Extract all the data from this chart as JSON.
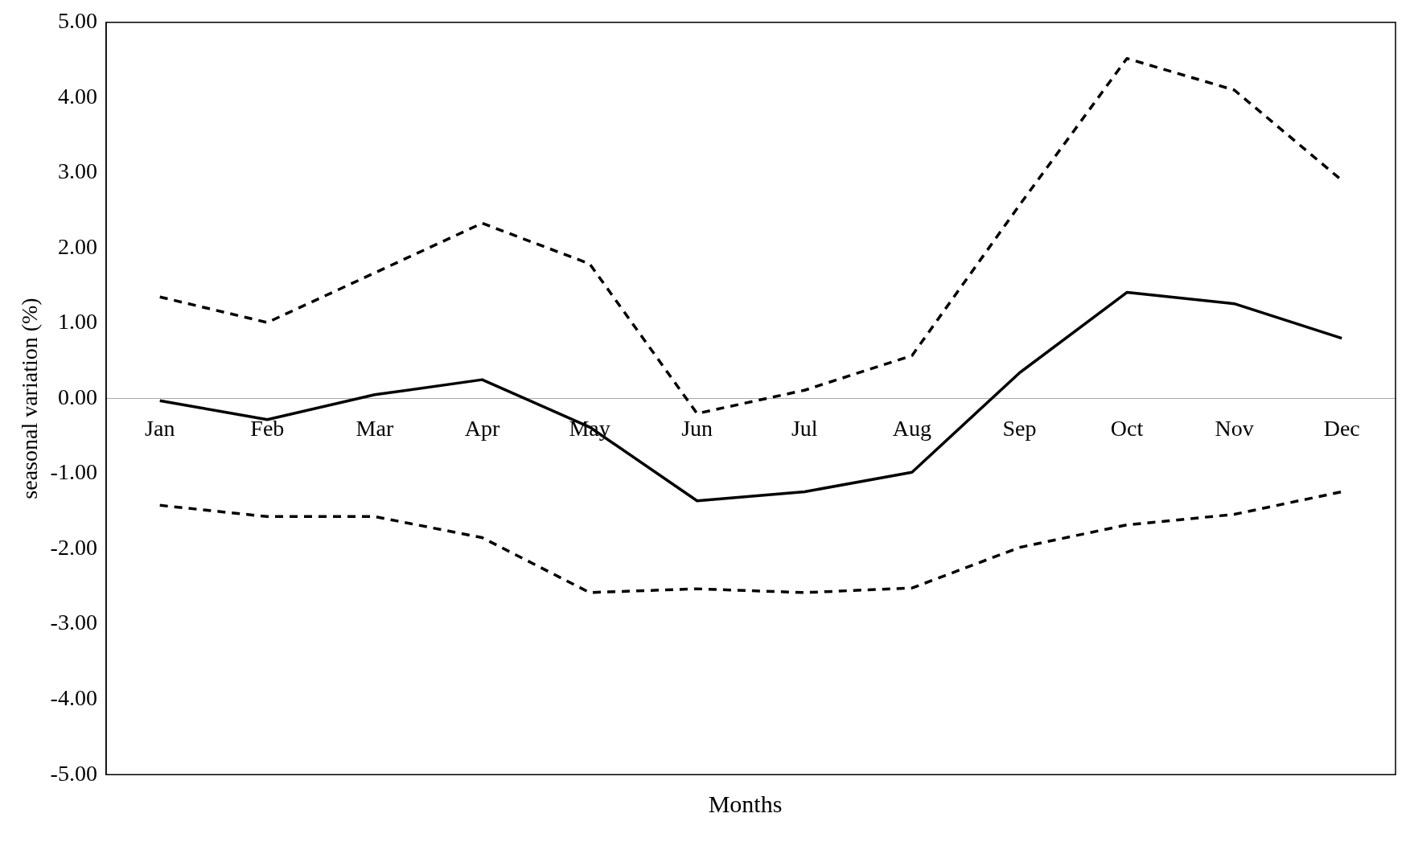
{
  "chart_data": {
    "type": "line",
    "xlabel": "Months",
    "ylabel": "seasonal variation (%)",
    "categories": [
      "Jan",
      "Feb",
      "Mar",
      "Apr",
      "May",
      "Jun",
      "Jul",
      "Aug",
      "Sep",
      "Oct",
      "Nov",
      "Dec"
    ],
    "series": [
      {
        "color": "#000000",
        "line_style": "dashed",
        "values": [
          1.35,
          1.01,
          1.67,
          2.33,
          1.79,
          -0.2,
          0.11,
          0.57,
          2.57,
          4.52,
          4.1,
          2.9
        ]
      },
      {
        "color": "#000000",
        "line_style": "solid",
        "values": [
          -0.03,
          -0.28,
          0.05,
          0.25,
          -0.38,
          -1.36,
          -1.24,
          -0.98,
          0.34,
          1.41,
          1.26,
          0.8
        ]
      },
      {
        "color": "#000000",
        "line_style": "dashed",
        "values": [
          -1.42,
          -1.57,
          -1.57,
          -1.85,
          -2.58,
          -2.53,
          -2.58,
          -2.52,
          -1.98,
          -1.68,
          -1.54,
          -1.24
        ]
      }
    ],
    "ylim": [
      -5,
      5
    ],
    "yticks": [
      {
        "value": -5,
        "label": "-5.00"
      },
      {
        "value": -4,
        "label": "-4.00"
      },
      {
        "value": -3,
        "label": "-3.00"
      },
      {
        "value": -2,
        "label": "-2.00"
      },
      {
        "value": -1,
        "label": "-1.00"
      },
      {
        "value": 0,
        "label": "0.00"
      },
      {
        "value": 1,
        "label": "1.00"
      },
      {
        "value": 2,
        "label": "2.00"
      },
      {
        "value": 3,
        "label": "3.00"
      },
      {
        "value": 4,
        "label": "4.00"
      },
      {
        "value": 5,
        "label": "5.00"
      }
    ],
    "grid": false,
    "legend": false,
    "marker": "none"
  }
}
